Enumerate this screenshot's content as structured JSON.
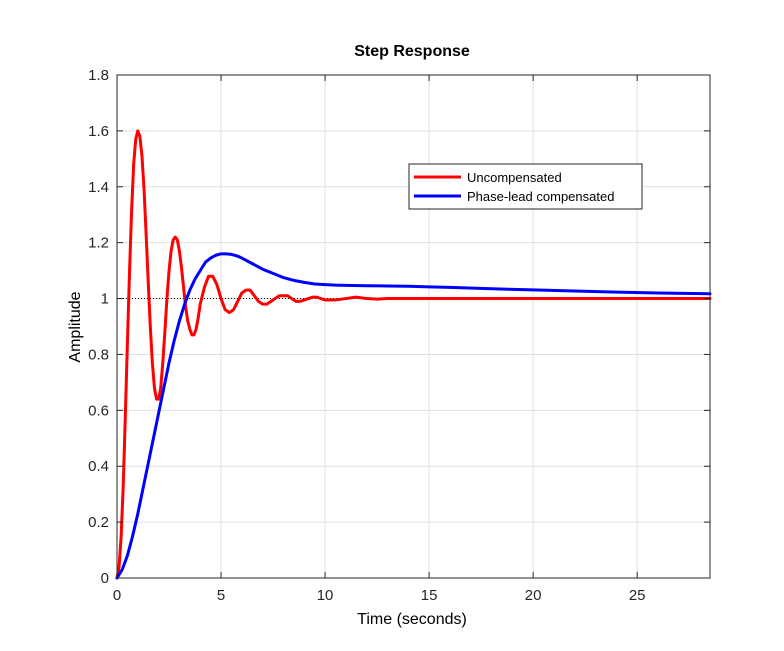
{
  "chart_data": {
    "type": "line",
    "title": "Step Response",
    "xlabel": "Time (seconds)",
    "ylabel": "Amplitude",
    "xlim": [
      0,
      28.5
    ],
    "ylim": [
      0,
      1.8
    ],
    "xticks": [
      0,
      5,
      10,
      15,
      20,
      25
    ],
    "xtick_labels": [
      "0",
      "5",
      "10",
      "15",
      "20",
      "25"
    ],
    "yticks": [
      0,
      0.2,
      0.4,
      0.6,
      0.8,
      1,
      1.2,
      1.4,
      1.6,
      1.8
    ],
    "ytick_labels": [
      "0",
      "0.2",
      "0.4",
      "0.6",
      "0.8",
      "1",
      "1.2",
      "1.4",
      "1.6",
      "1.8"
    ],
    "grid": true,
    "legend_position": "upper-right",
    "reference_line": {
      "y": 1,
      "style": "dotted",
      "color": "#000000"
    },
    "series": [
      {
        "name": "Uncompensated",
        "color": "#ff0000",
        "x": [
          0,
          0.1,
          0.2,
          0.3,
          0.4,
          0.5,
          0.6,
          0.7,
          0.8,
          0.9,
          1.0,
          1.1,
          1.2,
          1.3,
          1.4,
          1.5,
          1.6,
          1.7,
          1.8,
          1.9,
          2.0,
          2.1,
          2.2,
          2.3,
          2.4,
          2.5,
          2.6,
          2.7,
          2.8,
          2.9,
          3.0,
          3.1,
          3.2,
          3.3,
          3.4,
          3.5,
          3.6,
          3.7,
          3.8,
          3.9,
          4.0,
          4.2,
          4.4,
          4.6,
          4.8,
          5.0,
          5.2,
          5.4,
          5.6,
          5.8,
          6.0,
          6.2,
          6.4,
          6.6,
          6.8,
          7.0,
          7.2,
          7.4,
          7.6,
          7.8,
          8.0,
          8.2,
          8.4,
          8.6,
          8.8,
          9.0,
          9.2,
          9.4,
          9.6,
          9.8,
          10.0,
          10.5,
          11.0,
          11.5,
          12.0,
          12.5,
          13.0,
          13.5,
          14.0,
          15.0,
          16.0,
          18.0,
          20.0,
          22.0,
          24.0,
          26.0,
          28.5
        ],
        "values": [
          0,
          0.04,
          0.15,
          0.33,
          0.58,
          0.84,
          1.09,
          1.31,
          1.48,
          1.57,
          1.6,
          1.58,
          1.51,
          1.39,
          1.23,
          1.06,
          0.9,
          0.77,
          0.68,
          0.64,
          0.64,
          0.68,
          0.77,
          0.88,
          1.0,
          1.1,
          1.17,
          1.21,
          1.22,
          1.21,
          1.17,
          1.11,
          1.04,
          0.97,
          0.92,
          0.89,
          0.87,
          0.87,
          0.89,
          0.93,
          0.98,
          1.04,
          1.08,
          1.08,
          1.05,
          1.0,
          0.96,
          0.95,
          0.96,
          0.99,
          1.02,
          1.03,
          1.03,
          1.01,
          0.99,
          0.98,
          0.98,
          0.99,
          1.0,
          1.01,
          1.01,
          1.01,
          1.0,
          0.99,
          0.99,
          0.995,
          1.0,
          1.005,
          1.005,
          1.0,
          0.995,
          0.995,
          1.0,
          1.005,
          1.0,
          0.998,
          1.0,
          1.0,
          1.0,
          1.0,
          1.0,
          1.0,
          1.0,
          1.0,
          1.0,
          1.0,
          1.0
        ]
      },
      {
        "name": "Phase-lead compensated",
        "color": "#0000ff",
        "x": [
          0,
          0.25,
          0.5,
          0.75,
          1.0,
          1.25,
          1.5,
          1.75,
          2.0,
          2.25,
          2.5,
          2.75,
          3.0,
          3.25,
          3.5,
          3.75,
          4.0,
          4.25,
          4.5,
          4.75,
          5.0,
          5.25,
          5.5,
          5.75,
          6.0,
          6.5,
          7.0,
          7.5,
          8.0,
          8.5,
          9.0,
          9.5,
          10.0,
          10.5,
          11.0,
          12.0,
          13.0,
          14.0,
          15.0,
          16.0,
          18.0,
          20.0,
          22.0,
          24.0,
          26.0,
          28.5
        ],
        "values": [
          0,
          0.03,
          0.08,
          0.15,
          0.23,
          0.32,
          0.41,
          0.5,
          0.59,
          0.68,
          0.77,
          0.85,
          0.92,
          0.98,
          1.03,
          1.07,
          1.1,
          1.13,
          1.145,
          1.155,
          1.16,
          1.16,
          1.158,
          1.153,
          1.145,
          1.125,
          1.105,
          1.09,
          1.075,
          1.065,
          1.058,
          1.052,
          1.05,
          1.048,
          1.047,
          1.046,
          1.045,
          1.044,
          1.042,
          1.04,
          1.035,
          1.031,
          1.027,
          1.023,
          1.02,
          1.017
        ]
      }
    ]
  }
}
